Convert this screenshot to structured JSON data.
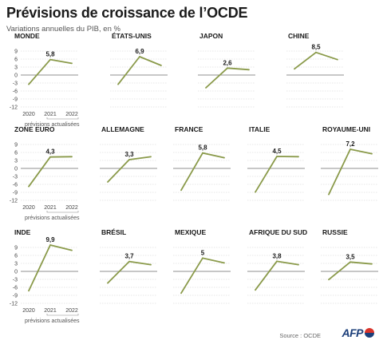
{
  "title": "Prévisions de croissance de l’OCDE",
  "subtitle": "Variations annuelles du PIB, en %",
  "source": "Source : OCDE",
  "logo": "AFP",
  "colors": {
    "line": "#8a9a4a",
    "grid": "#cfcfcf",
    "axis": "#6a6a6a"
  },
  "forecast_note": "prévisions actualisées",
  "chart_data": [
    {
      "type": "line",
      "title": "MONDE",
      "x": [
        "2020",
        "2021",
        "2022"
      ],
      "values": [
        -3.5,
        5.8,
        4.4
      ],
      "label": "5,8",
      "ylim": [
        -12,
        9
      ],
      "yticks": [
        "9",
        "6",
        "3",
        "0",
        "-3",
        "-6",
        "-9",
        "-12"
      ]
    },
    {
      "type": "line",
      "title": "ÉTATS-UNIS",
      "x": [
        "2020",
        "2021",
        "2022"
      ],
      "values": [
        -3.5,
        6.9,
        3.6
      ],
      "label": "6,9",
      "ylim": [
        -12,
        9
      ]
    },
    {
      "type": "line",
      "title": "JAPON",
      "x": [
        "2020",
        "2021",
        "2022"
      ],
      "values": [
        -4.8,
        2.6,
        2.0
      ],
      "label": "2,6",
      "ylim": [
        -12,
        9
      ]
    },
    {
      "type": "line",
      "title": "CHINE",
      "x": [
        "2020",
        "2021",
        "2022"
      ],
      "values": [
        2.3,
        8.5,
        5.8
      ],
      "label": "8,5",
      "ylim": [
        -12,
        9
      ]
    },
    {
      "type": "line",
      "title": "ZONE EURO",
      "x": [
        "2020",
        "2021",
        "2022"
      ],
      "values": [
        -6.8,
        4.3,
        4.4
      ],
      "label": "4,3",
      "ylim": [
        -12,
        9
      ],
      "yticks": [
        "9",
        "6",
        "3",
        "0",
        "-3",
        "-6",
        "-9",
        "-12"
      ]
    },
    {
      "type": "line",
      "title": "ALLEMAGNE",
      "x": [
        "2020",
        "2021",
        "2022"
      ],
      "values": [
        -5.1,
        3.3,
        4.4
      ],
      "label": "3,3",
      "ylim": [
        -12,
        9
      ]
    },
    {
      "type": "line",
      "title": "FRANCE",
      "x": [
        "2020",
        "2021",
        "2022"
      ],
      "values": [
        -8.2,
        5.8,
        4.0
      ],
      "label": "5,8",
      "ylim": [
        -12,
        9
      ]
    },
    {
      "type": "line",
      "title": "ITALIE",
      "x": [
        "2020",
        "2021",
        "2022"
      ],
      "values": [
        -8.9,
        4.5,
        4.4
      ],
      "label": "4,5",
      "ylim": [
        -12,
        9
      ]
    },
    {
      "type": "line",
      "title": "ROYAUME-UNI",
      "x": [
        "2020",
        "2021",
        "2022"
      ],
      "values": [
        -9.8,
        7.2,
        5.5
      ],
      "label": "7,2",
      "ylim": [
        -12,
        9
      ]
    },
    {
      "type": "line",
      "title": "INDE",
      "x": [
        "2020",
        "2021",
        "2022"
      ],
      "values": [
        -7.3,
        9.9,
        7.9
      ],
      "label": "9,9",
      "ylim": [
        -12,
        9
      ],
      "yticks": [
        "9",
        "6",
        "3",
        "0",
        "-3",
        "-6",
        "-9",
        "-12"
      ]
    },
    {
      "type": "line",
      "title": "BRÉSIL",
      "x": [
        "2020",
        "2021",
        "2022"
      ],
      "values": [
        -4.4,
        3.7,
        2.5
      ],
      "label": "3,7",
      "ylim": [
        -12,
        9
      ]
    },
    {
      "type": "line",
      "title": "MEXIQUE",
      "x": [
        "2020",
        "2021",
        "2022"
      ],
      "values": [
        -8.2,
        5.0,
        3.2
      ],
      "label": "5",
      "ylim": [
        -12,
        9
      ]
    },
    {
      "type": "line",
      "title": "AFRIQUE DU SUD",
      "x": [
        "2020",
        "2021",
        "2022"
      ],
      "values": [
        -7.0,
        3.8,
        2.5
      ],
      "label": "3,8",
      "ylim": [
        -12,
        9
      ]
    },
    {
      "type": "line",
      "title": "RUSSIE",
      "x": [
        "2020",
        "2021",
        "2022"
      ],
      "values": [
        -3.1,
        3.5,
        2.8
      ],
      "label": "3,5",
      "ylim": [
        -12,
        9
      ]
    }
  ]
}
